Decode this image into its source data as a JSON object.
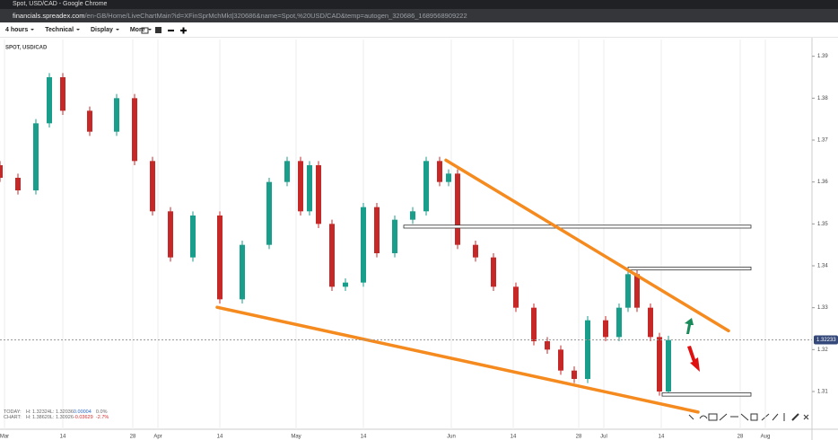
{
  "window": {
    "title": "Spot, USD/CAD - Google Chrome",
    "url_domain": "financials.spreadex.com",
    "url_path": "/en-GB/Home/LiveChartMain?id=XFinSprMchMkt|320686&name=Spot,%20USD/CAD&temp=autogen_320686_1689568909222"
  },
  "toolbar": {
    "interval": "4 hours",
    "menus": [
      "Technical",
      "Display",
      "More"
    ]
  },
  "stats": [
    [
      "TODAY:",
      "H: 1.32324",
      "L: 1.32036",
      "0.00004",
      "0.0%"
    ],
    [
      "CHART:",
      "H: 1.38620",
      "L: 1.30926",
      "-0.03629",
      "-2.7%"
    ]
  ],
  "chart_data": {
    "type": "candlestick",
    "title": "SPOT, USD/CAD",
    "up_color": "#1a9e8c",
    "down_color": "#c62828",
    "x": [
      0,
      4,
      8,
      11,
      14,
      20,
      26,
      30,
      34,
      38,
      43,
      49,
      54,
      60,
      64,
      67,
      69,
      71,
      74,
      77,
      81,
      84,
      88,
      92,
      95,
      98,
      100,
      102,
      106,
      110,
      115,
      119,
      122,
      125,
      128,
      131,
      135,
      138,
      140,
      142,
      145,
      147,
      149
    ],
    "open": [
      1.364,
      1.361,
      1.358,
      1.374,
      1.385,
      1.377,
      1.372,
      1.38,
      1.365,
      1.353,
      1.342,
      1.352,
      1.332,
      1.345,
      1.36,
      1.365,
      1.353,
      1.364,
      1.35,
      1.335,
      1.336,
      1.354,
      1.343,
      1.351,
      1.353,
      1.365,
      1.36,
      1.362,
      1.345,
      1.342,
      1.335,
      1.33,
      1.322,
      1.32,
      1.315,
      1.313,
      1.327,
      1.323,
      1.33,
      1.338,
      1.33,
      1.323,
      1.31
    ],
    "high": [
      1.365,
      1.362,
      1.375,
      1.386,
      1.386,
      1.378,
      1.381,
      1.381,
      1.366,
      1.354,
      1.353,
      1.353,
      1.346,
      1.361,
      1.366,
      1.366,
      1.365,
      1.365,
      1.351,
      1.337,
      1.355,
      1.355,
      1.352,
      1.354,
      1.366,
      1.366,
      1.363,
      1.363,
      1.346,
      1.343,
      1.336,
      1.331,
      1.323,
      1.321,
      1.316,
      1.328,
      1.328,
      1.331,
      1.339,
      1.339,
      1.331,
      1.324,
      1.3233
    ],
    "low": [
      1.36,
      1.357,
      1.357,
      1.373,
      1.376,
      1.371,
      1.371,
      1.364,
      1.352,
      1.341,
      1.341,
      1.331,
      1.331,
      1.344,
      1.359,
      1.352,
      1.352,
      1.349,
      1.334,
      1.334,
      1.335,
      1.342,
      1.342,
      1.35,
      1.352,
      1.359,
      1.359,
      1.344,
      1.341,
      1.334,
      1.329,
      1.321,
      1.319,
      1.314,
      1.312,
      1.312,
      1.322,
      1.322,
      1.329,
      1.329,
      1.322,
      1.309,
      1.309
    ],
    "close": [
      1.361,
      1.358,
      1.374,
      1.385,
      1.377,
      1.372,
      1.38,
      1.365,
      1.353,
      1.342,
      1.352,
      1.332,
      1.345,
      1.36,
      1.365,
      1.353,
      1.364,
      1.35,
      1.335,
      1.336,
      1.354,
      1.343,
      1.351,
      1.353,
      1.365,
      1.36,
      1.362,
      1.345,
      1.342,
      1.335,
      1.33,
      1.322,
      1.32,
      1.315,
      1.313,
      1.327,
      1.323,
      1.33,
      1.338,
      1.33,
      1.323,
      1.31,
      1.3223
    ],
    "xlim": [
      0,
      181
    ],
    "xticks": [
      {
        "value": 1,
        "label": "Mar"
      },
      {
        "value": 14,
        "label": "14"
      },
      {
        "value": 29.6,
        "label": "28"
      },
      {
        "value": 35.2,
        "label": "Apr"
      },
      {
        "value": 49,
        "label": "14"
      },
      {
        "value": 66,
        "label": "May"
      },
      {
        "value": 81,
        "label": "14"
      },
      {
        "value": 100.6,
        "label": "Jun"
      },
      {
        "value": 114.4,
        "label": "14"
      },
      {
        "value": 129,
        "label": "28"
      },
      {
        "value": 134.6,
        "label": "Jul"
      },
      {
        "value": 147.4,
        "label": "14"
      },
      {
        "value": 165,
        "label": "28"
      },
      {
        "value": 170.6,
        "label": "Aug"
      }
    ],
    "ylim": [
      1.301,
      1.394
    ],
    "yticks": [
      1.31,
      1.32,
      1.33,
      1.34,
      1.35,
      1.36,
      1.37,
      1.38,
      1.39
    ],
    "last_price": 1.32233,
    "trendline_color": "#f58a1f",
    "trendlines": [
      {
        "x": [
          99.4,
          162.4
        ],
        "y": [
          1.3652,
          1.3245
        ]
      },
      {
        "x": [
          48.4,
          155.6
        ],
        "y": [
          1.3301,
          1.3051
        ]
      }
    ],
    "zones": [
      {
        "x": [
          90,
          167.4
        ],
        "y": [
          1.3497,
          1.349
        ]
      },
      {
        "x": [
          140,
          167.4
        ],
        "y": [
          1.3397,
          1.339
        ]
      },
      {
        "x": [
          147.6,
          167.4
        ],
        "y": [
          1.3097,
          1.3089
        ]
      }
    ]
  }
}
